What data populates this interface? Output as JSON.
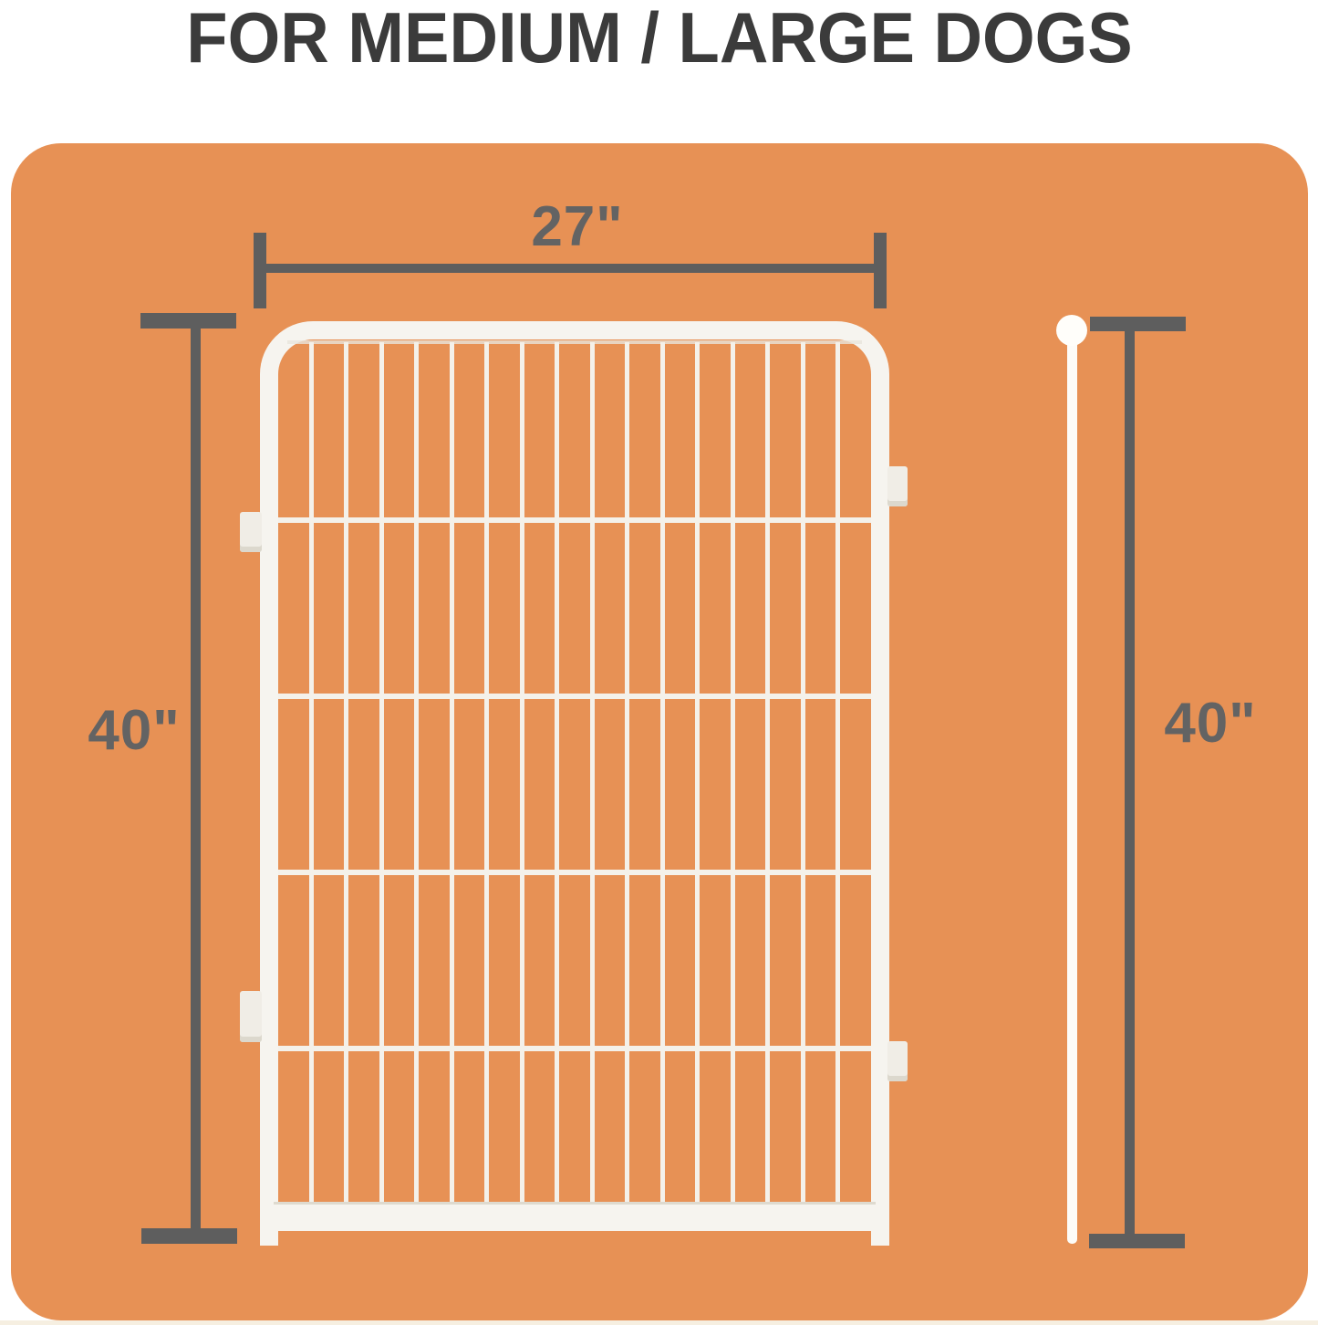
{
  "title": "FOR MEDIUM / LARGE DOGS",
  "dimensions": {
    "width_label": "27\"",
    "height_label_left": "40\"",
    "height_label_right": "40\""
  },
  "fence": {
    "vertical_wires": 16,
    "horizontal_wires": 4,
    "side_tabs": 4
  },
  "colors": {
    "page_background": "#FFFFFF",
    "panel_orange": "#E79155",
    "dimension_gray": "#5E5E5E",
    "title_text": "#3B3B3B",
    "fence_white": "#F6F4EF",
    "bottom_strip_cream": "#F6EFE1"
  }
}
